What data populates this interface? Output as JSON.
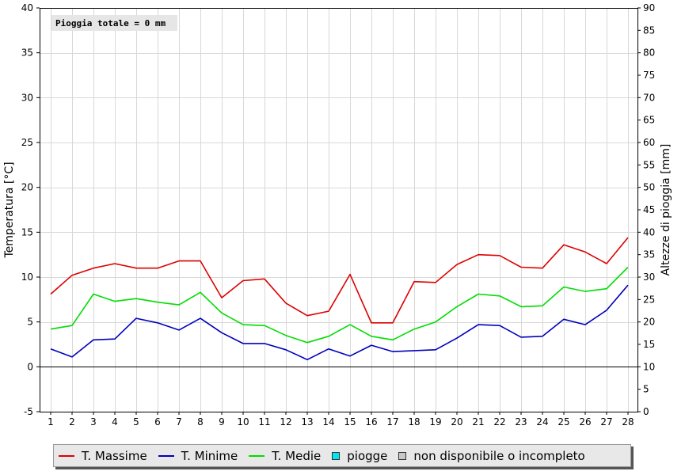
{
  "chart_data": {
    "type": "line",
    "x": [
      1,
      2,
      3,
      4,
      5,
      6,
      7,
      8,
      9,
      10,
      11,
      12,
      13,
      14,
      15,
      16,
      17,
      18,
      19,
      20,
      21,
      22,
      23,
      24,
      25,
      26,
      27,
      28
    ],
    "series": [
      {
        "name": "T. Massime",
        "color": "#dd0000",
        "values": [
          8.1,
          10.2,
          11.0,
          11.5,
          11.0,
          11.0,
          11.8,
          11.8,
          7.7,
          9.6,
          9.8,
          7.1,
          5.7,
          6.2,
          10.3,
          4.9,
          4.9,
          9.5,
          9.4,
          11.4,
          12.5,
          12.4,
          11.1,
          11.0,
          13.6,
          12.8,
          11.5,
          14.4
        ]
      },
      {
        "name": "T. Minime",
        "color": "#0000bb",
        "values": [
          2.0,
          1.1,
          3.0,
          3.1,
          5.4,
          4.9,
          4.1,
          5.4,
          3.8,
          2.6,
          2.6,
          1.9,
          0.8,
          2.0,
          1.2,
          2.4,
          1.7,
          1.8,
          1.9,
          3.2,
          4.7,
          4.6,
          3.3,
          3.4,
          5.3,
          4.7,
          6.3,
          9.1
        ]
      },
      {
        "name": "T. Medie",
        "color": "#00dd00",
        "values": [
          4.2,
          4.6,
          8.1,
          7.3,
          7.6,
          7.2,
          6.9,
          8.3,
          6.0,
          4.7,
          4.6,
          3.5,
          2.7,
          3.4,
          4.7,
          3.4,
          3.0,
          4.2,
          5.0,
          6.7,
          8.1,
          7.9,
          6.7,
          6.8,
          8.9,
          8.4,
          8.7,
          11.1
        ]
      }
    ],
    "legend": [
      {
        "label": "T. Massime",
        "kind": "line",
        "color": "#dd0000"
      },
      {
        "label": "T. Minime",
        "kind": "line",
        "color": "#0000bb"
      },
      {
        "label": "T. Medie",
        "kind": "line",
        "color": "#00dd00"
      },
      {
        "label": "piogge",
        "kind": "box",
        "color": "#00e5ee"
      },
      {
        "label": "non disponibile o incompleto",
        "kind": "box",
        "color": "#c8c8c8"
      }
    ],
    "annotation": "Pioggia totale = 0 mm",
    "ylabel": "Temperatura [°C]",
    "y2label": "Altezze di pioggia [mm]",
    "ylim": [
      -5,
      40
    ],
    "y2lim": [
      0,
      90
    ],
    "yticks": [
      -5,
      0,
      5,
      10,
      15,
      20,
      25,
      30,
      35,
      40
    ],
    "y2ticks": [
      0,
      5,
      10,
      15,
      20,
      25,
      30,
      35,
      40,
      45,
      50,
      55,
      60,
      65,
      70,
      75,
      80,
      85,
      90
    ],
    "grid": true,
    "legend_position": "bottom"
  }
}
